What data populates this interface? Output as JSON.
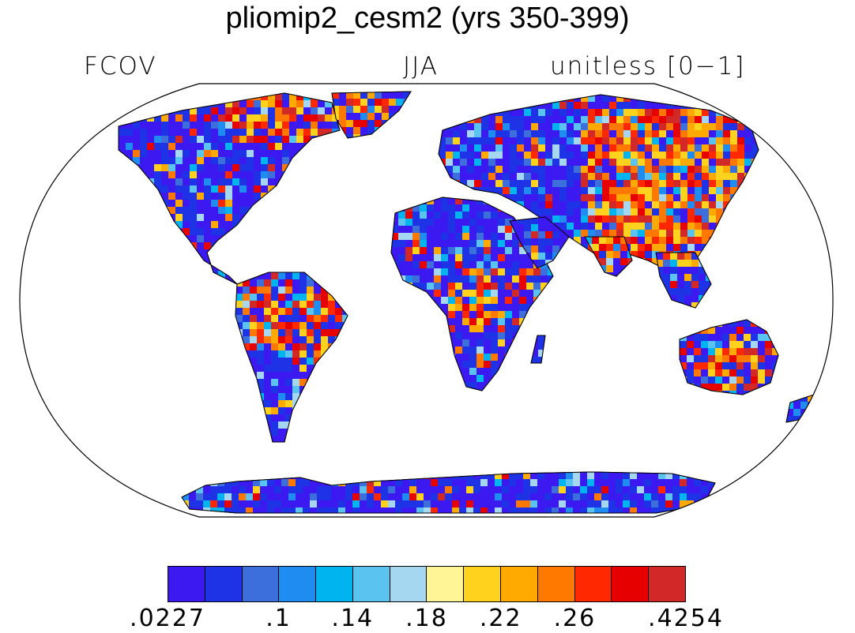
{
  "title": "pliomip2_cesm2 (yrs 350-399)",
  "subtitle_left": "FCOV",
  "subtitle_center": "JJA",
  "subtitle_right": "unitless [0−1]",
  "map": {
    "projection": "Robinson",
    "palette": [
      "#3c19f0",
      "#1e32e6",
      "#3c6edc",
      "#1e8cf0",
      "#00b4f0",
      "#5ac3f0",
      "#a5d7f0",
      "#fff596",
      "#ffd21e",
      "#ffaa00",
      "#ff7800",
      "#ff2800",
      "#e60000",
      "#d22828"
    ]
  },
  "colorbar": {
    "colors": [
      "#3c19f0",
      "#1e32e6",
      "#3c6edc",
      "#1e8cf0",
      "#00b4f0",
      "#5ac3f0",
      "#a5d7f0",
      "#fff596",
      "#ffd21e",
      "#ffaa00",
      "#ff7800",
      "#ff2800",
      "#e60000",
      "#d22828"
    ],
    "labels": [
      ".0227",
      ".1",
      ".14",
      ".18",
      ".22",
      ".26",
      ".4254"
    ]
  }
}
